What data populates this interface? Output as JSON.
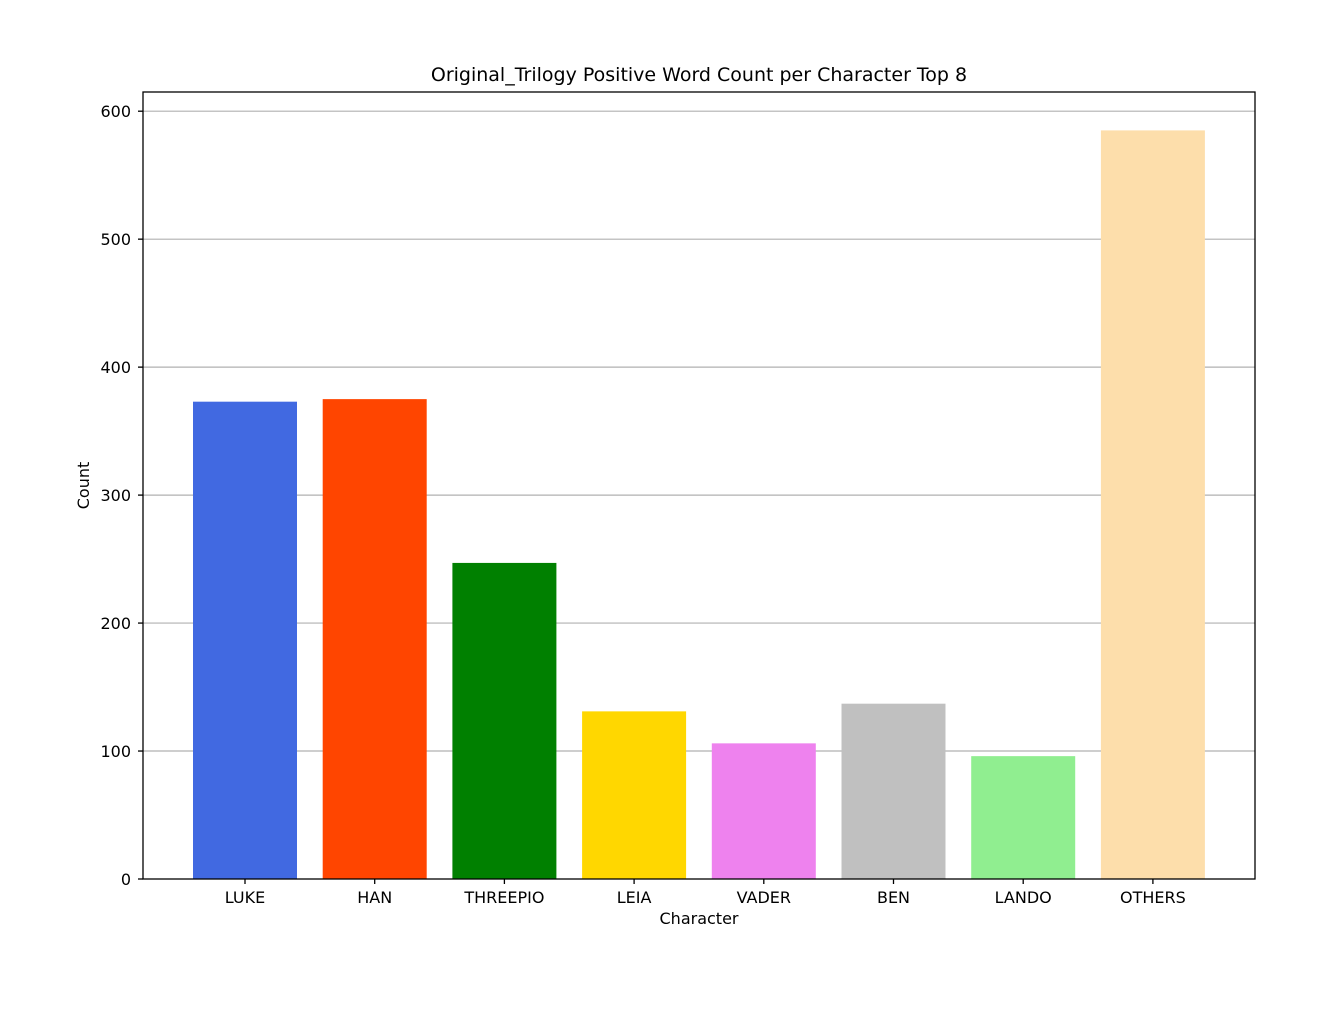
{
  "chart_data": {
    "type": "bar",
    "title": "Original_Trilogy Positive Word Count per Character Top 8",
    "xlabel": "Character",
    "ylabel": "Count",
    "categories": [
      "LUKE",
      "HAN",
      "THREEPIO",
      "LEIA",
      "VADER",
      "BEN",
      "LANDO",
      "OTHERS"
    ],
    "values": [
      373,
      375,
      247,
      131,
      106,
      137,
      96,
      585
    ],
    "colors": [
      "#4169e1",
      "#ff4500",
      "#008000",
      "#ffd700",
      "#ee82ee",
      "#c0c0c0",
      "#90ee90",
      "#fddeab"
    ],
    "ylim": [
      0,
      615
    ],
    "yticks": [
      0,
      100,
      200,
      300,
      400,
      500,
      600
    ],
    "grid": "horizontal"
  }
}
